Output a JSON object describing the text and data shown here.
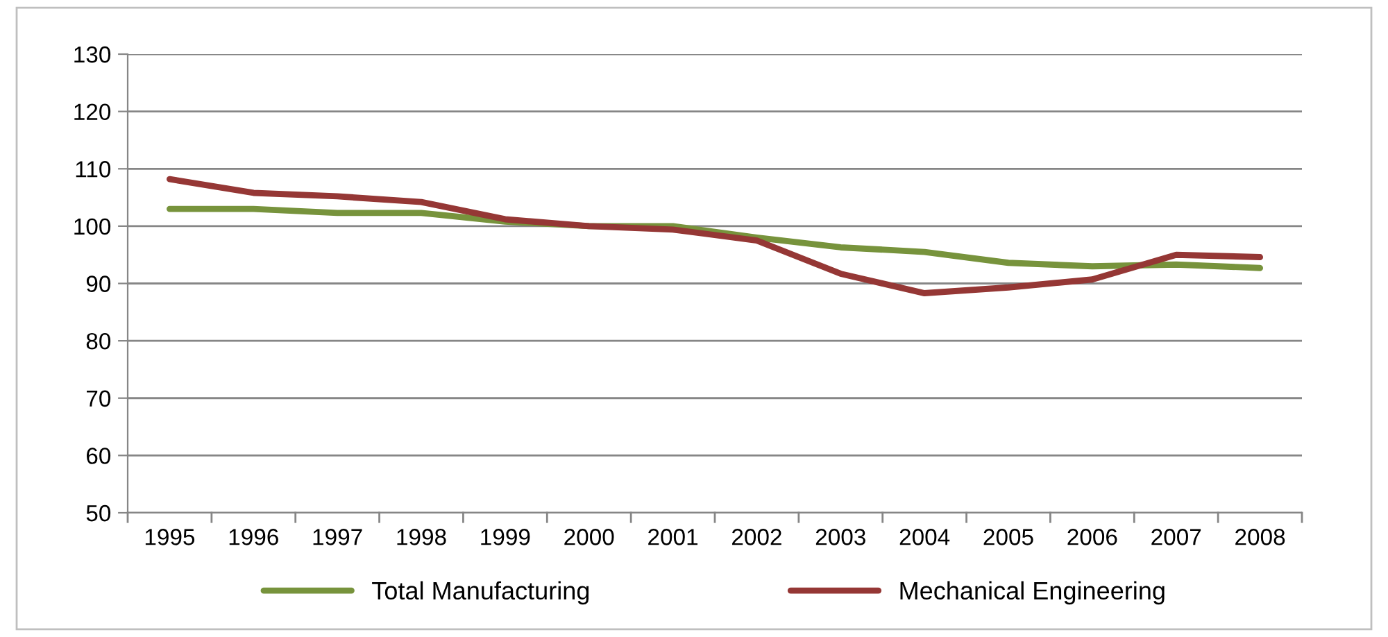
{
  "chart_data": {
    "type": "line",
    "categories": [
      "1995",
      "1996",
      "1997",
      "1998",
      "1999",
      "2000",
      "2001",
      "2002",
      "2003",
      "2004",
      "2005",
      "2006",
      "2007",
      "2008"
    ],
    "series": [
      {
        "name": "Total Manufacturing",
        "color": "#77933c",
        "values": [
          103,
          103,
          102.3,
          102.3,
          100.8,
          100,
          100,
          98,
          96.3,
          95.5,
          93.6,
          93,
          93.3,
          92.7
        ]
      },
      {
        "name": "Mechanical Engineering",
        "color": "#953735",
        "values": [
          108.2,
          105.8,
          105.2,
          104.2,
          101.2,
          100,
          99.4,
          97.5,
          91.7,
          88.3,
          89.3,
          90.7,
          95,
          94.6
        ]
      }
    ],
    "ylim": [
      50,
      130
    ],
    "yticks": [
      50,
      60,
      70,
      80,
      90,
      100,
      110,
      120,
      130
    ],
    "grid": "y",
    "legend": "bottom",
    "marker": "none",
    "line_style": "solid"
  }
}
